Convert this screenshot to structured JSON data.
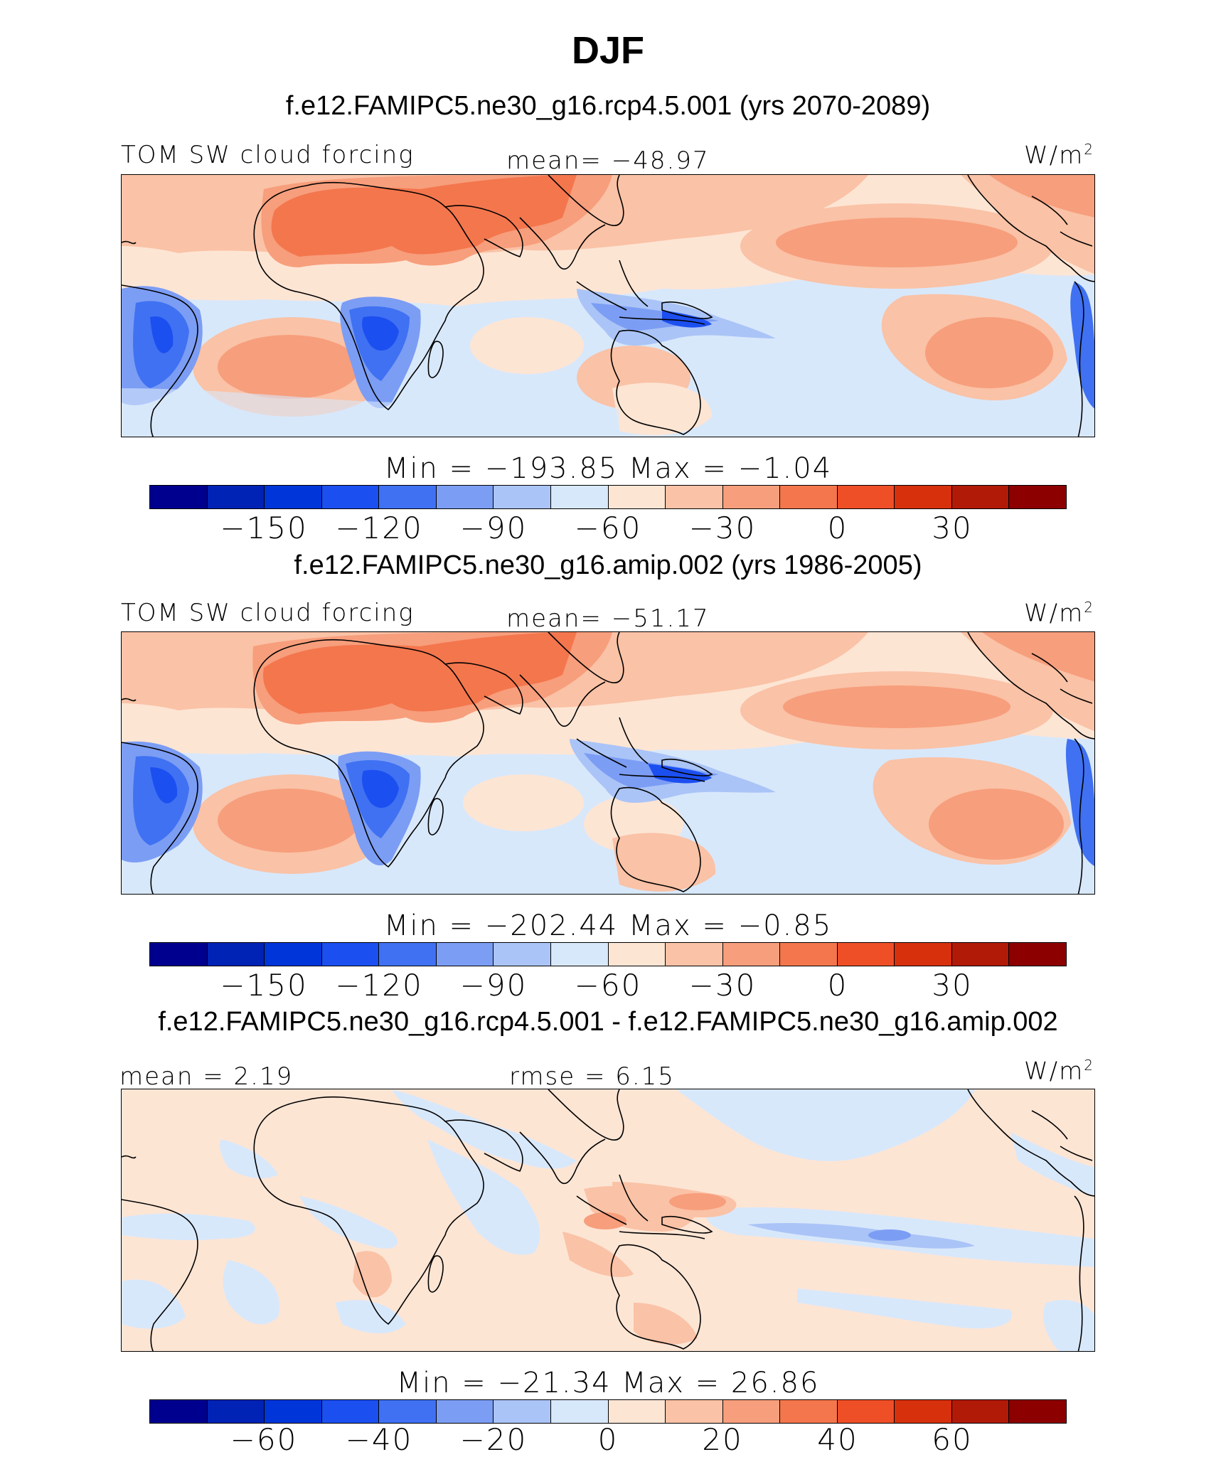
{
  "title": "DJF",
  "panels": [
    {
      "title": "f.e12.FAMIPC5.ne30_g16.rcp4.5.001 (yrs 2070-2089)",
      "left_label": "TOM SW cloud forcing",
      "center_label": "mean= −48.97",
      "units_base": "W/m",
      "units_exp": "2",
      "minmax": "Min  =  −193.85  Max  =   −1.04",
      "colorbar_ticks": [
        "−150",
        "−120",
        "−90",
        "−60",
        "−30",
        "0",
        "30"
      ]
    },
    {
      "title": "f.e12.FAMIPC5.ne30_g16.amip.002 (yrs 1986-2005)",
      "left_label": "TOM SW cloud forcing",
      "center_label": "mean= −51.17",
      "units_base": "W/m",
      "units_exp": "2",
      "minmax": "Min  =  −202.44  Max  =   −0.85",
      "colorbar_ticks": [
        "−150",
        "−120",
        "−90",
        "−60",
        "−30",
        "0",
        "30"
      ]
    },
    {
      "title": "f.e12.FAMIPC5.ne30_g16.rcp4.5.001 - f.e12.FAMIPC5.ne30_g16.amip.002",
      "left_label": "mean  =    2.19",
      "center_label": "rmse  =    6.15",
      "units_base": "W/m",
      "units_exp": "2",
      "minmax": "Min  =  −21.34  Max  =   26.86",
      "colorbar_ticks": [
        "−60",
        "−40",
        "−20",
        "0",
        "20",
        "40",
        "60"
      ]
    }
  ],
  "colors": {
    "palette": [
      "#00008f",
      "#0022b5",
      "#0036d9",
      "#1c4ff0",
      "#3f71f2",
      "#7c9df4",
      "#aac4f7",
      "#d8e8fb",
      "#fde5d4",
      "#fac2a6",
      "#f79e7c",
      "#f4764d",
      "#ef4f27",
      "#d7300d",
      "#b21a08",
      "#8c0000"
    ]
  }
}
